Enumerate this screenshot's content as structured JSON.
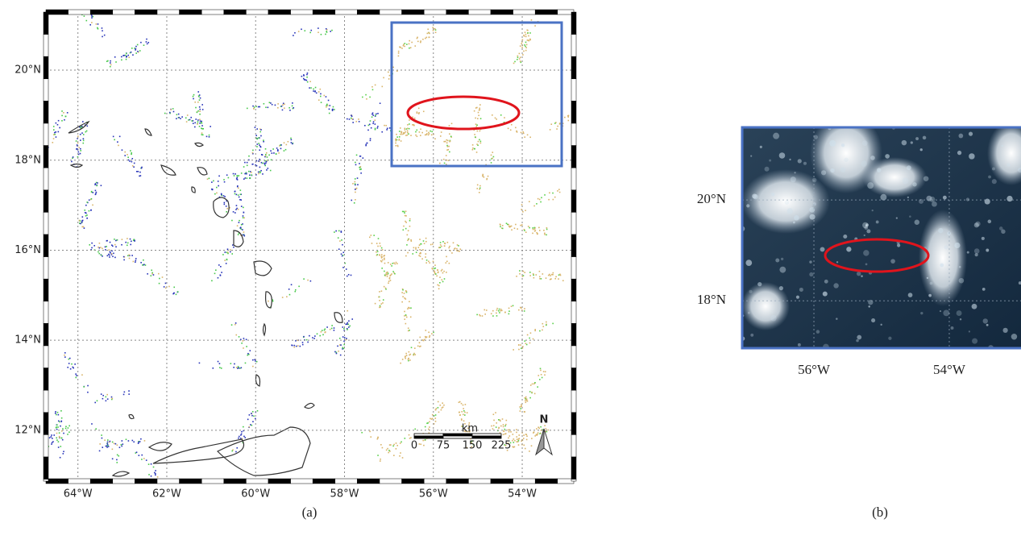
{
  "panel_a": {
    "label": "(a)",
    "lonlim": [
      -64.72,
      -52.84
    ],
    "latlim": [
      10.87,
      21.29
    ],
    "lonticks": [
      {
        "value": -64,
        "label": "64°W"
      },
      {
        "value": -62,
        "label": "62°W"
      },
      {
        "value": -60,
        "label": "60°W"
      },
      {
        "value": -58,
        "label": "58°W"
      },
      {
        "value": -56,
        "label": "56°W"
      },
      {
        "value": -54,
        "label": "54°W"
      }
    ],
    "latticks": [
      {
        "value": 20,
        "label": "20°N"
      },
      {
        "value": 18,
        "label": "18°N"
      },
      {
        "value": 16,
        "label": "16°N"
      },
      {
        "value": 14,
        "label": "14°N"
      },
      {
        "value": 12,
        "label": "12°N"
      }
    ],
    "scale_bar": {
      "unit": "km",
      "ticks": [
        0,
        75,
        150,
        225
      ]
    },
    "north": "N"
  },
  "panel_b": {
    "label": "(b)",
    "lonlim": [
      -57.06,
      -52.94
    ],
    "latlim": [
      17.06,
      21.44
    ],
    "lonticks": [
      {
        "value": -56,
        "label": "56°W"
      },
      {
        "value": -54,
        "label": "54°W"
      }
    ],
    "latticks": [
      {
        "value": 20,
        "label": "20°N"
      },
      {
        "value": 18,
        "label": "18°N"
      }
    ]
  }
}
